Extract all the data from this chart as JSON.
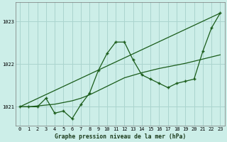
{
  "title": "Graphe pression niveau de la mer (hPa)",
  "background_color": "#cceee8",
  "grid_color": "#aad4ce",
  "line_color": "#1a5c1a",
  "xlim": [
    -0.5,
    23.5
  ],
  "ylim": [
    1020.55,
    1023.45
  ],
  "yticks": [
    1021,
    1022,
    1023
  ],
  "xticks": [
    0,
    1,
    2,
    3,
    4,
    5,
    6,
    7,
    8,
    9,
    10,
    11,
    12,
    13,
    14,
    15,
    16,
    17,
    18,
    19,
    20,
    21,
    22,
    23
  ],
  "series1_x": [
    0,
    1,
    2,
    3,
    4,
    5,
    6,
    7,
    8,
    9,
    10,
    11,
    12,
    13,
    14,
    15,
    16,
    17,
    18,
    19,
    20,
    21,
    22,
    23
  ],
  "series1_y": [
    1021.0,
    1021.0,
    1021.0,
    1021.2,
    1020.85,
    1020.9,
    1020.72,
    1021.05,
    1021.32,
    1021.85,
    1022.25,
    1022.52,
    1022.52,
    1022.1,
    1021.75,
    1021.65,
    1021.55,
    1021.45,
    1021.55,
    1021.6,
    1021.65,
    1022.3,
    1022.85,
    1023.2
  ],
  "series2_x": [
    0,
    23
  ],
  "series2_y": [
    1021.0,
    1023.2
  ],
  "series3_x": [
    0,
    1,
    2,
    3,
    4,
    5,
    6,
    7,
    8,
    9,
    10,
    11,
    12,
    13,
    14,
    15,
    16,
    17,
    18,
    19,
    20,
    21,
    22,
    23
  ],
  "series3_y": [
    1021.0,
    1021.0,
    1021.02,
    1021.04,
    1021.06,
    1021.1,
    1021.14,
    1021.2,
    1021.28,
    1021.38,
    1021.48,
    1021.58,
    1021.68,
    1021.74,
    1021.8,
    1021.85,
    1021.9,
    1021.94,
    1021.98,
    1022.02,
    1022.07,
    1022.12,
    1022.17,
    1022.22
  ]
}
